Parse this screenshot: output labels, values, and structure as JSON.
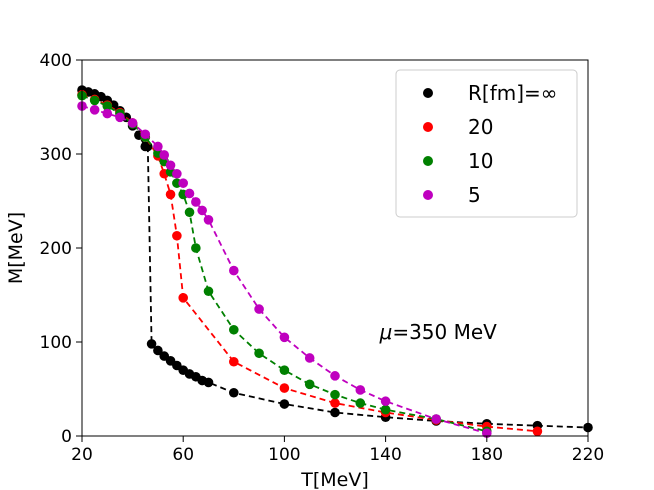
{
  "chart_data": {
    "type": "line",
    "xlabel": "T[MeV]",
    "ylabel": "M[MeV]",
    "xlim": [
      20,
      220
    ],
    "ylim": [
      0,
      400
    ],
    "xticks": [
      20,
      60,
      100,
      140,
      180,
      220
    ],
    "yticks": [
      0,
      100,
      200,
      300,
      400
    ],
    "grid": false,
    "legend_placement": "top-right",
    "annotation": {
      "prefix": "μ",
      "text": "=350 MeV",
      "x": 140,
      "y": 103
    },
    "series": [
      {
        "name": "R[fm]=∞",
        "color": "#000000",
        "x": [
          20,
          22.5,
          25,
          27.5,
          30,
          32.5,
          35,
          37.5,
          40,
          42.5,
          45,
          46,
          47.5,
          50,
          52.5,
          55,
          57.5,
          60,
          62.5,
          65,
          67.5,
          70,
          80,
          100,
          120,
          140,
          160,
          180,
          200,
          220
        ],
        "y": [
          368,
          366,
          364,
          361,
          357,
          352,
          346,
          339,
          330,
          320,
          308,
          308,
          98,
          91,
          85,
          80,
          75,
          70,
          66,
          63,
          59,
          57,
          46,
          34,
          25,
          20,
          16,
          13,
          11,
          9
        ]
      },
      {
        "name": "20",
        "color": "#ff0000",
        "x": [
          20,
          25,
          30,
          35,
          40,
          45,
          50,
          52.5,
          55,
          57.5,
          60,
          80,
          100,
          120,
          140,
          160,
          180,
          200
        ],
        "y": [
          363,
          358,
          352,
          344,
          333,
          318,
          298,
          279,
          257,
          213,
          147,
          79,
          51,
          35,
          25,
          17,
          10,
          5
        ]
      },
      {
        "name": "10",
        "color": "#008000",
        "x": [
          20,
          25,
          30,
          35,
          40,
          45,
          50,
          52.5,
          55,
          57.5,
          60,
          62.5,
          65,
          70,
          80,
          90,
          100,
          110,
          120,
          130,
          140,
          160,
          180
        ],
        "y": [
          362,
          357,
          351,
          343,
          332,
          318,
          301,
          292,
          281,
          269,
          257,
          238,
          200,
          154,
          113,
          88,
          70,
          55,
          44,
          35,
          28,
          18,
          5
        ]
      },
      {
        "name": "5",
        "color": "#bf00bf",
        "x": [
          20,
          25,
          30,
          35,
          40,
          45,
          50,
          52.5,
          55,
          57.5,
          60,
          62.5,
          65,
          67.5,
          70,
          80,
          90,
          100,
          110,
          120,
          130,
          140,
          160,
          180
        ],
        "y": [
          351,
          347,
          343,
          339,
          333,
          321,
          308,
          299,
          288,
          279,
          269,
          258,
          249,
          240,
          230,
          176,
          135,
          105,
          83,
          64,
          49,
          37,
          18,
          3
        ]
      }
    ]
  }
}
